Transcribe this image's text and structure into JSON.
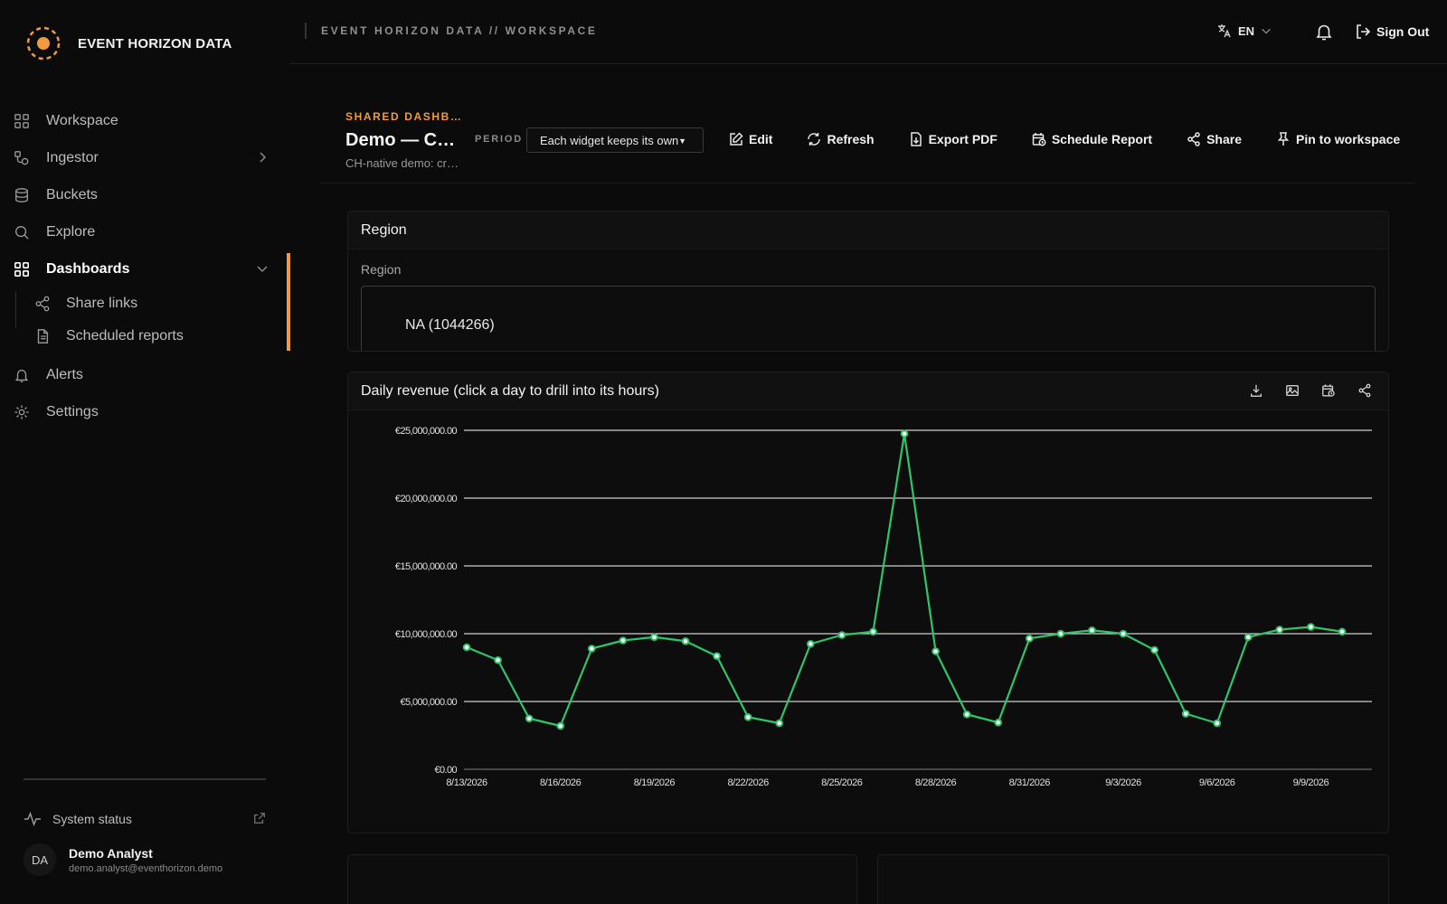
{
  "brand": {
    "name": "EVENT HORIZON DATA"
  },
  "sidebar": {
    "items": [
      {
        "label": "Workspace",
        "icon": "grid-icon"
      },
      {
        "label": "Ingestor",
        "icon": "flow-icon",
        "expandable": true
      },
      {
        "label": "Buckets",
        "icon": "database-icon"
      },
      {
        "label": "Explore",
        "icon": "search-icon"
      },
      {
        "label": "Dashboards",
        "icon": "grid-icon",
        "active": true,
        "expanded": true,
        "children": [
          {
            "label": "Share links",
            "icon": "share-icon"
          },
          {
            "label": "Scheduled reports",
            "icon": "document-icon"
          }
        ]
      },
      {
        "label": "Alerts",
        "icon": "bell-icon"
      },
      {
        "label": "Settings",
        "icon": "gear-icon"
      }
    ],
    "system_status": "System status",
    "user": {
      "initials": "DA",
      "name": "Demo Analyst",
      "email": "demo.analyst@eventhorizon.demo"
    }
  },
  "header": {
    "breadcrumb": "EVENT HORIZON DATA // WORKSPACE",
    "language": "EN",
    "sign_out": "Sign Out"
  },
  "page": {
    "eyebrow": "SHARED DASHBOARD",
    "title": "Demo — Cross-source",
    "subtitle": "CH-native demo: cross-source",
    "period_label": "PERIOD",
    "period_value": "Each widget keeps its own",
    "actions": [
      "Edit",
      "Refresh",
      "Export PDF",
      "Schedule Report",
      "Share",
      "Pin to workspace"
    ]
  },
  "region_widget": {
    "title": "Region",
    "field_label": "Region",
    "value": "NA (1044266)"
  },
  "chart_widget": {
    "title": "Daily revenue (click a day to drill into its hours)"
  },
  "chart_data": {
    "type": "line",
    "x_tick_labels": [
      "8/13/2026",
      "8/16/2026",
      "8/19/2026",
      "8/22/2026",
      "8/25/2026",
      "8/28/2026",
      "8/31/2026",
      "9/3/2026",
      "9/6/2026",
      "9/9/2026"
    ],
    "y_tick_labels": [
      "€0.00",
      "€5,000,000.00",
      "€10,000,000.00",
      "€15,000,000.00",
      "€20,000,000.00",
      "€25,000,000.00"
    ],
    "ylim": [
      0,
      25000000
    ],
    "grid": true,
    "line_color": "#2fc56b",
    "series": [
      {
        "x": [
          "8/13/2026",
          "8/14/2026",
          "8/15/2026",
          "8/16/2026",
          "8/17/2026",
          "8/18/2026",
          "8/19/2026",
          "8/20/2026",
          "8/21/2026",
          "8/22/2026",
          "8/23/2026",
          "8/24/2026",
          "8/25/2026",
          "8/26/2026",
          "8/27/2026",
          "8/28/2026",
          "8/29/2026",
          "8/30/2026",
          "8/31/2026",
          "9/1/2026",
          "9/2/2026",
          "9/3/2026",
          "9/4/2026",
          "9/5/2026",
          "9/6/2026",
          "9/7/2026",
          "9/8/2026",
          "9/9/2026",
          "9/10/2026"
        ],
        "values": [
          9000000,
          8050000,
          3750000,
          3200000,
          8900000,
          9500000,
          9750000,
          9450000,
          8350000,
          3850000,
          3400000,
          9250000,
          9900000,
          10150000,
          24750000,
          8700000,
          4050000,
          3450000,
          9650000,
          10000000,
          10250000,
          10000000,
          8800000,
          4100000,
          3400000,
          9750000,
          10300000,
          10500000,
          10150000
        ]
      }
    ]
  },
  "colors": {
    "accent": "#f29a3e",
    "line": "#2fc56b",
    "background": "#0b0b0b"
  }
}
